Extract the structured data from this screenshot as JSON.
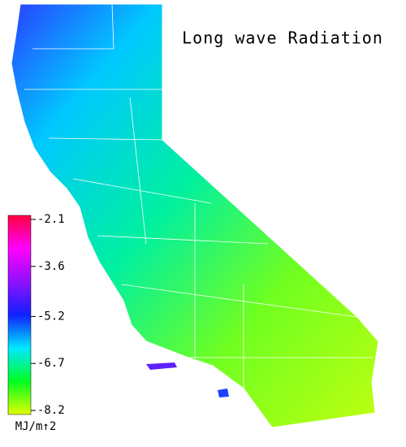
{
  "title": "Long wave Radiation",
  "colorbar": {
    "lim": [
      -8.2,
      -2.1
    ],
    "ticks": [
      -2.1,
      -3.6,
      -5.2,
      -6.7,
      -8.2
    ],
    "colors": [
      "#e0ff00",
      "#00ff20",
      "#00e8ff",
      "#1020ff",
      "#9010ff",
      "#ff00ff",
      "#ff0040"
    ],
    "unit": "MJ/m↑2"
  }
}
